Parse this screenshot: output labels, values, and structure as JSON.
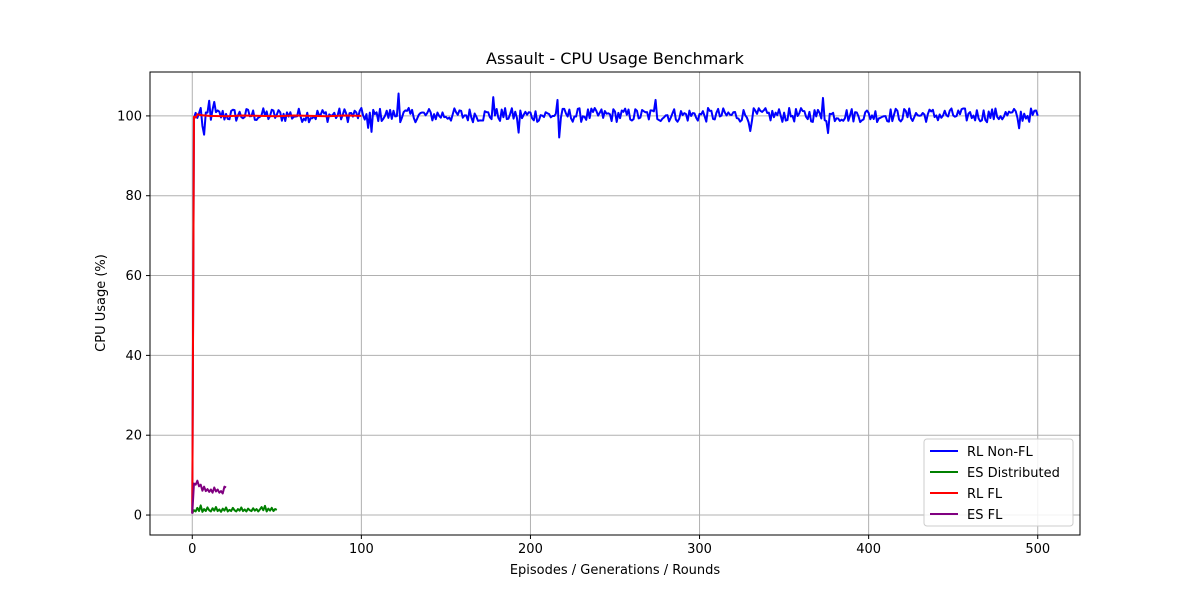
{
  "chart_data": {
    "type": "line",
    "title": "Assault - CPU Usage Benchmark",
    "xlabel": "Episodes / Generations / Rounds",
    "ylabel": "CPU Usage (%)",
    "xlim": [
      -25,
      525
    ],
    "ylim": [
      -5,
      111
    ],
    "xticks": [
      0,
      100,
      200,
      300,
      400,
      500
    ],
    "yticks": [
      0,
      20,
      40,
      60,
      80,
      100
    ],
    "grid": true,
    "legend_position": "lower-right",
    "series": [
      {
        "name": "RL Non-FL",
        "color": "#0000ff",
        "noise": {
          "start": 1,
          "end": 500,
          "base": 100.2,
          "amp": 1.8,
          "peaks": [
            [
              6,
              97.5
            ],
            [
              7,
              95.3
            ],
            [
              10,
              103.8
            ],
            [
              13,
              103.5
            ],
            [
              104,
              97.0
            ],
            [
              106,
              96.0
            ],
            [
              122,
              105.6
            ],
            [
              178,
              104.7
            ],
            [
              193,
              95.8
            ],
            [
              216,
              104.0
            ],
            [
              217,
              94.6
            ],
            [
              274,
              104.0
            ],
            [
              330,
              96.2
            ],
            [
              373,
              104.5
            ],
            [
              376,
              95.7
            ],
            [
              489,
              96.9
            ]
          ]
        },
        "points": [
          [
            0,
            0.5
          ],
          [
            1,
            99.5
          ]
        ]
      },
      {
        "name": "ES Distributed",
        "color": "#008000",
        "points": [
          [
            0,
            0.5
          ],
          [
            1,
            1.2
          ],
          [
            2,
            0.9
          ],
          [
            3,
            1.8
          ],
          [
            4,
            1.0
          ],
          [
            5,
            2.4
          ],
          [
            6,
            0.8
          ],
          [
            7,
            1.5
          ],
          [
            8,
            1.0
          ],
          [
            9,
            1.9
          ],
          [
            10,
            1.2
          ],
          [
            11,
            0.9
          ],
          [
            12,
            1.7
          ],
          [
            13,
            1.1
          ],
          [
            14,
            2.0
          ],
          [
            15,
            1.0
          ],
          [
            16,
            1.4
          ],
          [
            17,
            0.8
          ],
          [
            18,
            1.6
          ],
          [
            19,
            1.1
          ],
          [
            20,
            1.9
          ],
          [
            21,
            0.9
          ],
          [
            22,
            1.3
          ],
          [
            23,
            1.0
          ],
          [
            24,
            1.8
          ],
          [
            25,
            1.2
          ],
          [
            26,
            0.9
          ],
          [
            27,
            1.5
          ],
          [
            28,
            1.1
          ],
          [
            29,
            1.9
          ],
          [
            30,
            1.0
          ],
          [
            31,
            1.4
          ],
          [
            32,
            0.9
          ],
          [
            33,
            1.6
          ],
          [
            34,
            1.2
          ],
          [
            35,
            1.0
          ],
          [
            36,
            1.7
          ],
          [
            37,
            1.1
          ],
          [
            38,
            1.5
          ],
          [
            39,
            0.9
          ],
          [
            40,
            1.4
          ],
          [
            41,
            2.0
          ],
          [
            42,
            1.2
          ],
          [
            43,
            2.3
          ],
          [
            44,
            0.9
          ],
          [
            45,
            1.6
          ],
          [
            46,
            1.1
          ],
          [
            47,
            1.8
          ],
          [
            48,
            1.0
          ],
          [
            49,
            1.5
          ],
          [
            50,
            1.3
          ]
        ]
      },
      {
        "name": "RL FL",
        "color": "#ff0000",
        "points": [
          [
            0,
            0.5
          ],
          [
            1,
            99.8
          ],
          [
            2,
            99.6
          ],
          [
            3,
            100.4
          ],
          [
            5,
            100.2
          ],
          [
            10,
            100.0
          ],
          [
            20,
            99.9
          ],
          [
            30,
            100.1
          ],
          [
            40,
            100.0
          ],
          [
            50,
            99.9
          ],
          [
            60,
            100.1
          ],
          [
            70,
            100.0
          ],
          [
            80,
            99.9
          ],
          [
            90,
            100.1
          ],
          [
            100,
            100.0
          ]
        ]
      },
      {
        "name": "ES FL",
        "color": "#800080",
        "points": [
          [
            0,
            0.3
          ],
          [
            1,
            7.9
          ],
          [
            2,
            7.6
          ],
          [
            3,
            8.6
          ],
          [
            4,
            7.2
          ],
          [
            5,
            7.6
          ],
          [
            6,
            6.1
          ],
          [
            7,
            7.1
          ],
          [
            8,
            6.0
          ],
          [
            9,
            6.5
          ],
          [
            10,
            5.8
          ],
          [
            11,
            6.4
          ],
          [
            12,
            5.6
          ],
          [
            13,
            6.9
          ],
          [
            14,
            5.9
          ],
          [
            15,
            6.4
          ],
          [
            16,
            5.6
          ],
          [
            17,
            6.0
          ],
          [
            18,
            5.4
          ],
          [
            19,
            7.1
          ],
          [
            20,
            6.9
          ]
        ]
      }
    ]
  }
}
